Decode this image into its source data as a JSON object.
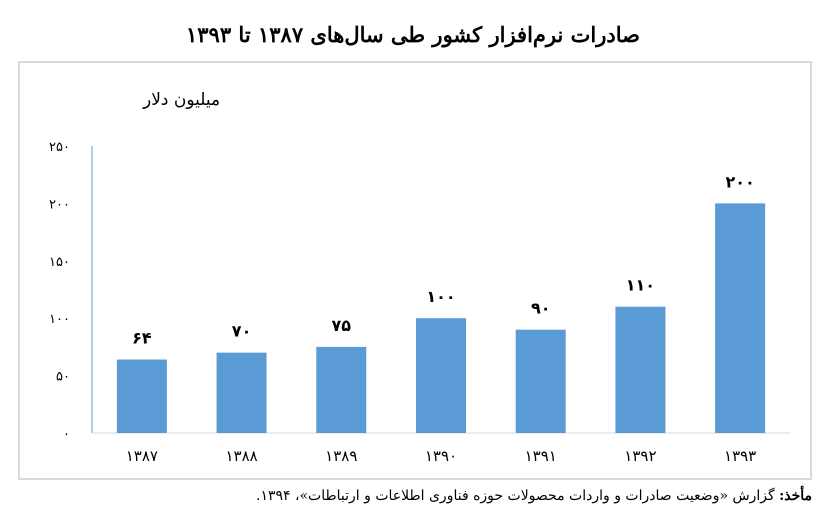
{
  "chart_data": {
    "type": "bar",
    "title": "صادرات نرم‌افزار کشور طی سال‌های ۱۳۸۷ تا ۱۳۹۳",
    "ylabel": "میلیون دلار",
    "xlabel": "",
    "categories": [
      "۱۳۸۷",
      "۱۳۸۸",
      "۱۳۸۹",
      "۱۳۹۰",
      "۱۳۹۱",
      "۱۳۹۲",
      "۱۳۹۳"
    ],
    "values": [
      64,
      70,
      75,
      100,
      90,
      110,
      200
    ],
    "value_labels": [
      "۶۴",
      "۷۰",
      "۷۵",
      "۱۰۰",
      "۹۰",
      "۱۱۰",
      "۲۰۰"
    ],
    "yticks": [
      0,
      50,
      100,
      150,
      200,
      250
    ],
    "ytick_labels": [
      "۰",
      "۵۰",
      "۱۰۰",
      "۱۵۰",
      "۲۰۰",
      "۲۵۰"
    ],
    "ylim": [
      0,
      250
    ],
    "grid": false,
    "bar_color": "#5b9bd5"
  },
  "source": {
    "lead": "مأخذ:",
    "text": " گزارش «وضعیت صادرات و واردات محصولات حوزه فناوری اطلاعات و ارتباطات»، ۱۳۹۴."
  }
}
